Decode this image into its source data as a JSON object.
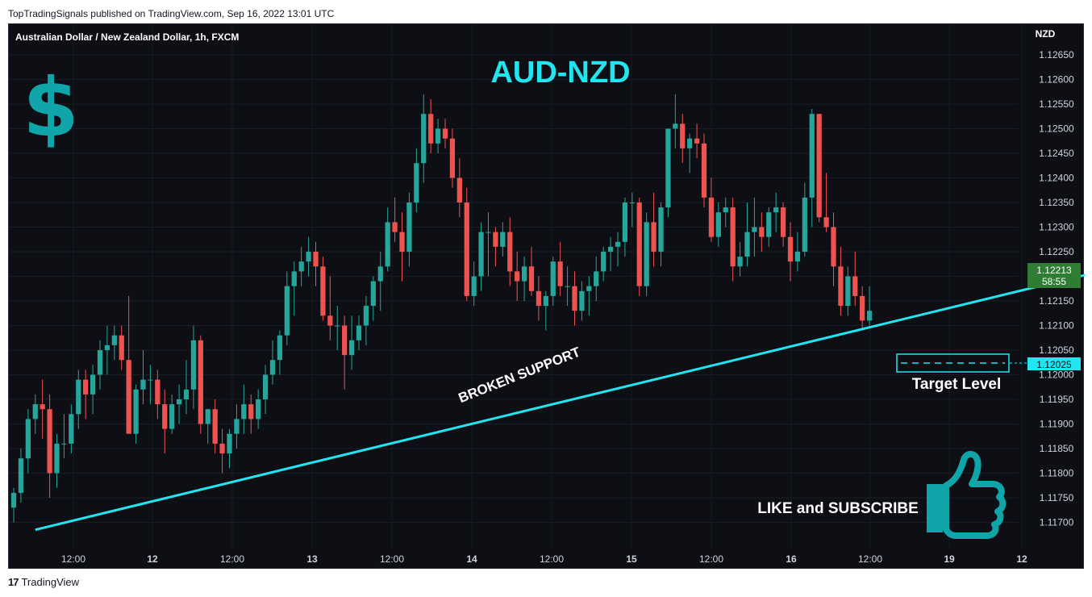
{
  "header": {
    "published": "TopTradingSignals published on TradingView.com, Sep 16, 2022 13:01 UTC"
  },
  "footer": {
    "brand": "TradingView"
  },
  "colors": {
    "up": "#26a69a",
    "down": "#ef5350",
    "background": "#0d0f14",
    "accent": "#22e5f0",
    "icon": "#0fa5a9",
    "last_price_bg": "#2e7d32"
  },
  "chart_data": {
    "type": "candlestick",
    "symbol_title": "Australian Dollar / New Zealand Dollar, 1h, FXCM",
    "headline": "AUD-NZD",
    "currency_label": "NZD",
    "y_ticks": [
      "1.12650",
      "1.12600",
      "1.12550",
      "1.12500",
      "1.12450",
      "1.12400",
      "1.12350",
      "1.12300",
      "1.12250",
      "1.12200",
      "1.12150",
      "1.12100",
      "1.12050",
      "1.12000",
      "1.11950",
      "1.11900",
      "1.11850",
      "1.11800",
      "1.11750",
      "1.11700"
    ],
    "ylim": [
      1.1166,
      1.1269
    ],
    "x_ticks": [
      "12:00",
      "12",
      "12:00",
      "13",
      "12:00",
      "14",
      "12:00",
      "15",
      "12:00",
      "16",
      "12:00",
      "19",
      "12"
    ],
    "last_price": {
      "value": "1.12213",
      "countdown": "58:55"
    },
    "target_price": "1.12025",
    "annotations": {
      "trendline": "BROKEN SUPPORT",
      "target": "Target Level",
      "cta": "LIKE and SUBSCRIBE"
    },
    "trendline": {
      "start": {
        "bar": 3,
        "price": 1.11685
      },
      "end": {
        "bar": 199,
        "price": 1.1238
      }
    },
    "arrow": {
      "from": {
        "bar": 170,
        "price": 1.12285
      },
      "to": {
        "bar": 194,
        "price": 1.1206
      }
    },
    "candles_note": "Approximate hourly OHLC sequence (open/high/low/close) read from the chart",
    "candles": [
      [
        1.1173,
        1.1177,
        1.117,
        1.1176
      ],
      [
        1.1176,
        1.1185,
        1.1174,
        1.1183
      ],
      [
        1.1183,
        1.1193,
        1.118,
        1.1191
      ],
      [
        1.1191,
        1.1196,
        1.1188,
        1.1194
      ],
      [
        1.1194,
        1.1199,
        1.1187,
        1.1193
      ],
      [
        1.1193,
        1.1196,
        1.1175,
        1.118
      ],
      [
        1.118,
        1.1188,
        1.1177,
        1.1186
      ],
      [
        1.1186,
        1.1192,
        1.1183,
        1.1186
      ],
      [
        1.1186,
        1.1194,
        1.1184,
        1.1192
      ],
      [
        1.1192,
        1.1201,
        1.1189,
        1.1199
      ],
      [
        1.1199,
        1.1201,
        1.1191,
        1.1196
      ],
      [
        1.1196,
        1.1202,
        1.1192,
        1.12
      ],
      [
        1.12,
        1.1207,
        1.1197,
        1.1205
      ],
      [
        1.1205,
        1.121,
        1.12,
        1.1206
      ],
      [
        1.1206,
        1.121,
        1.1203,
        1.1208
      ],
      [
        1.1208,
        1.121,
        1.1201,
        1.1203
      ],
      [
        1.1203,
        1.1216,
        1.1188,
        1.1188
      ],
      [
        1.1188,
        1.1198,
        1.1186,
        1.1197
      ],
      [
        1.1197,
        1.1205,
        1.1194,
        1.1199
      ],
      [
        1.1199,
        1.1202,
        1.1194,
        1.1199
      ],
      [
        1.1199,
        1.1201,
        1.1191,
        1.1194
      ],
      [
        1.1194,
        1.1197,
        1.1184,
        1.1189
      ],
      [
        1.1189,
        1.1196,
        1.1188,
        1.1194
      ],
      [
        1.1194,
        1.1198,
        1.119,
        1.1195
      ],
      [
        1.1195,
        1.1203,
        1.1192,
        1.1197
      ],
      [
        1.1197,
        1.121,
        1.1193,
        1.1207
      ],
      [
        1.1207,
        1.1208,
        1.1188,
        1.119
      ],
      [
        1.119,
        1.1193,
        1.1186,
        1.1193
      ],
      [
        1.1193,
        1.1195,
        1.1184,
        1.1186
      ],
      [
        1.1186,
        1.1189,
        1.118,
        1.1184
      ],
      [
        1.1184,
        1.1189,
        1.1181,
        1.1188
      ],
      [
        1.1188,
        1.1194,
        1.1185,
        1.1191
      ],
      [
        1.1191,
        1.1198,
        1.1188,
        1.1194
      ],
      [
        1.1194,
        1.1196,
        1.1188,
        1.1191
      ],
      [
        1.1191,
        1.1197,
        1.1189,
        1.1195
      ],
      [
        1.1195,
        1.1202,
        1.1192,
        1.12
      ],
      [
        1.12,
        1.1207,
        1.1198,
        1.1203
      ],
      [
        1.1203,
        1.1209,
        1.12,
        1.1208
      ],
      [
        1.1208,
        1.1221,
        1.1206,
        1.1218
      ],
      [
        1.1218,
        1.1223,
        1.1212,
        1.1221
      ],
      [
        1.1221,
        1.1226,
        1.1218,
        1.1223
      ],
      [
        1.1223,
        1.1228,
        1.122,
        1.1225
      ],
      [
        1.1225,
        1.1227,
        1.1218,
        1.1222
      ],
      [
        1.1222,
        1.1224,
        1.1211,
        1.1212
      ],
      [
        1.1212,
        1.122,
        1.1207,
        1.121
      ],
      [
        1.121,
        1.1214,
        1.1205,
        1.121
      ],
      [
        1.121,
        1.1212,
        1.1197,
        1.1204
      ],
      [
        1.1204,
        1.1212,
        1.1201,
        1.1207
      ],
      [
        1.1207,
        1.1212,
        1.1205,
        1.121
      ],
      [
        1.121,
        1.1216,
        1.1206,
        1.1214
      ],
      [
        1.1214,
        1.122,
        1.1211,
        1.1219
      ],
      [
        1.1219,
        1.1225,
        1.1213,
        1.1222
      ],
      [
        1.1222,
        1.1234,
        1.1221,
        1.1231
      ],
      [
        1.1231,
        1.1236,
        1.1227,
        1.1229
      ],
      [
        1.1229,
        1.1233,
        1.1219,
        1.1225
      ],
      [
        1.1225,
        1.1237,
        1.1222,
        1.1235
      ],
      [
        1.1235,
        1.1246,
        1.1233,
        1.1243
      ],
      [
        1.1243,
        1.1257,
        1.1239,
        1.1253
      ],
      [
        1.1253,
        1.1256,
        1.1245,
        1.1247
      ],
      [
        1.1247,
        1.1252,
        1.1245,
        1.125
      ],
      [
        1.125,
        1.1252,
        1.1246,
        1.1248
      ],
      [
        1.1248,
        1.125,
        1.1238,
        1.124
      ],
      [
        1.124,
        1.1244,
        1.1232,
        1.1235
      ],
      [
        1.1235,
        1.1238,
        1.1215,
        1.1216
      ],
      [
        1.1216,
        1.1223,
        1.1214,
        1.122
      ],
      [
        1.122,
        1.1231,
        1.1217,
        1.1229
      ],
      [
        1.1229,
        1.1233,
        1.122,
        1.1229
      ],
      [
        1.1229,
        1.123,
        1.1222,
        1.1226
      ],
      [
        1.1226,
        1.1231,
        1.1224,
        1.1229
      ],
      [
        1.1229,
        1.1232,
        1.1218,
        1.1221
      ],
      [
        1.1221,
        1.1225,
        1.1215,
        1.1219
      ],
      [
        1.1219,
        1.1224,
        1.1215,
        1.1222
      ],
      [
        1.1222,
        1.1226,
        1.1216,
        1.1217
      ],
      [
        1.1217,
        1.122,
        1.1211,
        1.1214
      ],
      [
        1.1214,
        1.1217,
        1.1209,
        1.1216
      ],
      [
        1.1216,
        1.1224,
        1.1214,
        1.1223
      ],
      [
        1.1223,
        1.1227,
        1.1216,
        1.1218
      ],
      [
        1.1218,
        1.1222,
        1.1214,
        1.1218
      ],
      [
        1.1218,
        1.1221,
        1.121,
        1.1213
      ],
      [
        1.1213,
        1.1219,
        1.1211,
        1.1217
      ],
      [
        1.1217,
        1.122,
        1.1212,
        1.1218
      ],
      [
        1.1218,
        1.1224,
        1.1215,
        1.1221
      ],
      [
        1.1221,
        1.1226,
        1.1219,
        1.1225
      ],
      [
        1.1225,
        1.1228,
        1.1221,
        1.1226
      ],
      [
        1.1226,
        1.1229,
        1.1222,
        1.1227
      ],
      [
        1.1227,
        1.1236,
        1.1224,
        1.1235
      ],
      [
        1.1235,
        1.1237,
        1.123,
        1.1235
      ],
      [
        1.1235,
        1.1236,
        1.1216,
        1.1218
      ],
      [
        1.1218,
        1.1233,
        1.1216,
        1.1231
      ],
      [
        1.1231,
        1.1237,
        1.1222,
        1.1225
      ],
      [
        1.1225,
        1.1235,
        1.1222,
        1.1234
      ],
      [
        1.1234,
        1.125,
        1.1232,
        1.125
      ],
      [
        1.125,
        1.1257,
        1.1246,
        1.1251
      ],
      [
        1.1251,
        1.1253,
        1.1243,
        1.1246
      ],
      [
        1.1246,
        1.1249,
        1.1241,
        1.1248
      ],
      [
        1.1248,
        1.1251,
        1.1244,
        1.1247
      ],
      [
        1.1247,
        1.1249,
        1.1234,
        1.1236
      ],
      [
        1.1236,
        1.124,
        1.1227,
        1.1228
      ],
      [
        1.1228,
        1.1235,
        1.1226,
        1.1233
      ],
      [
        1.1233,
        1.1236,
        1.123,
        1.1234
      ],
      [
        1.1234,
        1.1236,
        1.1219,
        1.1222
      ],
      [
        1.1222,
        1.1227,
        1.122,
        1.1224
      ],
      [
        1.1224,
        1.1235,
        1.1222,
        1.1229
      ],
      [
        1.1229,
        1.1236,
        1.1224,
        1.123
      ],
      [
        1.123,
        1.1233,
        1.1225,
        1.1228
      ],
      [
        1.1228,
        1.1234,
        1.1226,
        1.1233
      ],
      [
        1.1233,
        1.1237,
        1.1229,
        1.1234
      ],
      [
        1.1234,
        1.1235,
        1.1226,
        1.1228
      ],
      [
        1.1228,
        1.1231,
        1.1219,
        1.1223
      ],
      [
        1.1223,
        1.1229,
        1.1221,
        1.1225
      ],
      [
        1.1225,
        1.1239,
        1.1224,
        1.1236
      ],
      [
        1.1236,
        1.1254,
        1.123,
        1.1253
      ],
      [
        1.1253,
        1.1253,
        1.1231,
        1.1232
      ],
      [
        1.1232,
        1.1241,
        1.1229,
        1.123
      ],
      [
        1.123,
        1.1233,
        1.1218,
        1.1222
      ],
      [
        1.1222,
        1.1226,
        1.1212,
        1.1214
      ],
      [
        1.1214,
        1.1222,
        1.1212,
        1.122
      ],
      [
        1.122,
        1.1225,
        1.1214,
        1.1216
      ],
      [
        1.1216,
        1.1218,
        1.1209,
        1.1211
      ],
      [
        1.1211,
        1.1218,
        1.121,
        1.1213
      ]
    ]
  }
}
